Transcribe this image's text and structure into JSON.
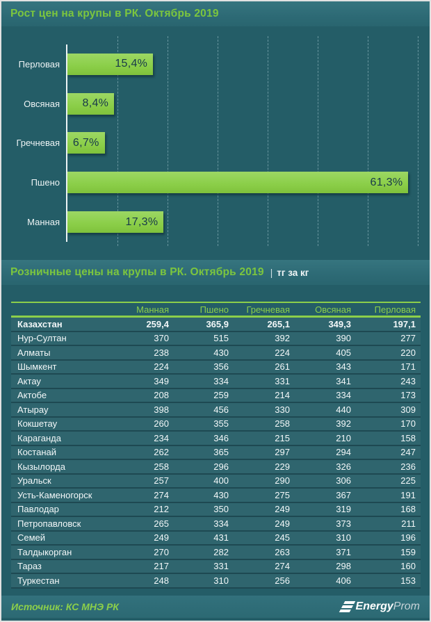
{
  "colors": {
    "background": "#245d67",
    "panel": "#2d6a75",
    "accent_green": "#8ccf4a",
    "title_green": "#7cc63e",
    "bar_green": "#8ccf4a",
    "bar_value_text": "#17384a",
    "table_text": "#f3f8f9"
  },
  "chart_section": {
    "title": "Рост цен на крупы в РК. Октябрь 2019"
  },
  "chart_data": {
    "type": "bar",
    "orientation": "horizontal",
    "title": "Рост цен на крупы в РК. Октябрь 2019",
    "categories": [
      "Перловая",
      "Овсяная",
      "Гречневая",
      "Пшено",
      "Манная"
    ],
    "values": [
      15.4,
      8.4,
      6.7,
      61.3,
      17.3
    ],
    "value_labels": [
      "15,4%",
      "8,4%",
      "6,7%",
      "61,3%",
      "17,3%"
    ],
    "unit": "%",
    "xlim": [
      0,
      63.5
    ],
    "gridline_step": 9,
    "grid": true,
    "legend": false
  },
  "table_section": {
    "title": "Розничные цены на крупы в РК. Октябрь 2019",
    "subtitle_sep": "|",
    "subtitle": "тг за кг",
    "columns": [
      "Манная",
      "Пшено",
      "Гречневая",
      "Овсяная",
      "Перловая"
    ],
    "rows": [
      {
        "name": "Казахстан",
        "bold": true,
        "values": [
          "259,4",
          "365,9",
          "265,1",
          "349,3",
          "197,1"
        ]
      },
      {
        "name": "Нур-Султан",
        "values": [
          "370",
          "515",
          "392",
          "390",
          "277"
        ]
      },
      {
        "name": "Алматы",
        "values": [
          "238",
          "430",
          "224",
          "405",
          "220"
        ]
      },
      {
        "name": "Шымкент",
        "values": [
          "224",
          "356",
          "261",
          "343",
          "171"
        ]
      },
      {
        "name": "Актау",
        "values": [
          "349",
          "334",
          "331",
          "341",
          "243"
        ]
      },
      {
        "name": "Актобе",
        "values": [
          "208",
          "259",
          "214",
          "334",
          "173"
        ]
      },
      {
        "name": "Атырау",
        "values": [
          "398",
          "456",
          "330",
          "440",
          "309"
        ]
      },
      {
        "name": "Кокшетау",
        "values": [
          "260",
          "355",
          "258",
          "392",
          "170"
        ]
      },
      {
        "name": "Караганда",
        "values": [
          "234",
          "346",
          "215",
          "210",
          "158"
        ]
      },
      {
        "name": "Костанай",
        "values": [
          "262",
          "365",
          "297",
          "294",
          "247"
        ]
      },
      {
        "name": "Кызылорда",
        "values": [
          "258",
          "296",
          "229",
          "326",
          "236"
        ]
      },
      {
        "name": "Уральск",
        "values": [
          "257",
          "400",
          "290",
          "306",
          "225"
        ]
      },
      {
        "name": "Усть-Каменогорск",
        "values": [
          "274",
          "430",
          "275",
          "367",
          "191"
        ]
      },
      {
        "name": "Павлодар",
        "values": [
          "212",
          "350",
          "249",
          "319",
          "168"
        ]
      },
      {
        "name": "Петропавловск",
        "values": [
          "265",
          "334",
          "249",
          "373",
          "211"
        ]
      },
      {
        "name": "Семей",
        "values": [
          "249",
          "431",
          "245",
          "310",
          "196"
        ]
      },
      {
        "name": "Талдыкорган",
        "values": [
          "270",
          "282",
          "263",
          "371",
          "159"
        ]
      },
      {
        "name": "Тараз",
        "values": [
          "217",
          "331",
          "274",
          "298",
          "160"
        ]
      },
      {
        "name": "Туркестан",
        "values": [
          "248",
          "310",
          "256",
          "406",
          "153"
        ]
      }
    ]
  },
  "footer": {
    "source": "Источник: КС МНЭ РК",
    "logo_energy": "Energy",
    "logo_prom": "Prom"
  }
}
